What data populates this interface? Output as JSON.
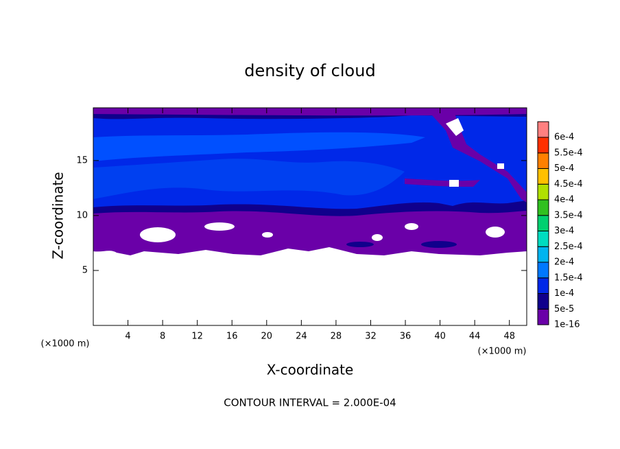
{
  "chart_data": {
    "type": "contour",
    "title": "density of cloud",
    "x_label": "X-coordinate",
    "y_label": "Z-coordinate",
    "x_unit_label": "(×1000 m)",
    "y_unit_label": "(×1000 m)",
    "footer": "CONTOUR INTERVAL = 2.000E-04",
    "xlim": [
      0,
      50
    ],
    "xticks": [
      4,
      8,
      12,
      16,
      20,
      24,
      28,
      32,
      36,
      40,
      44,
      48
    ],
    "ylim": [
      0,
      19.8
    ],
    "yticks": [
      5,
      10,
      15
    ],
    "colorbar": {
      "levels": [
        {
          "value": 1e-16,
          "label": "1e-16"
        },
        {
          "value": 5e-05,
          "label": "5e-5"
        },
        {
          "value": 0.0001,
          "label": "1e-4"
        },
        {
          "value": 0.00015,
          "label": "1.5e-4"
        },
        {
          "value": 0.0002,
          "label": "2e-4"
        },
        {
          "value": 0.00025,
          "label": "2.5e-4"
        },
        {
          "value": 0.0003,
          "label": "3e-4"
        },
        {
          "value": 0.00035,
          "label": "3.5e-4"
        },
        {
          "value": 0.0004,
          "label": "4e-4"
        },
        {
          "value": 0.00045,
          "label": "4.5e-4"
        },
        {
          "value": 0.0005,
          "label": "5e-4"
        },
        {
          "value": 0.00055,
          "label": "5.5e-4"
        },
        {
          "value": 0.0006,
          "label": "6e-4"
        }
      ],
      "colors": [
        "#6a00a8",
        "#10008c",
        "#0028e8",
        "#0078ff",
        "#00b4f0",
        "#00dcc0",
        "#00d070",
        "#30c020",
        "#b0e000",
        "#ffc000",
        "#ff8000",
        "#ff3000",
        "#ff8080"
      ]
    }
  }
}
